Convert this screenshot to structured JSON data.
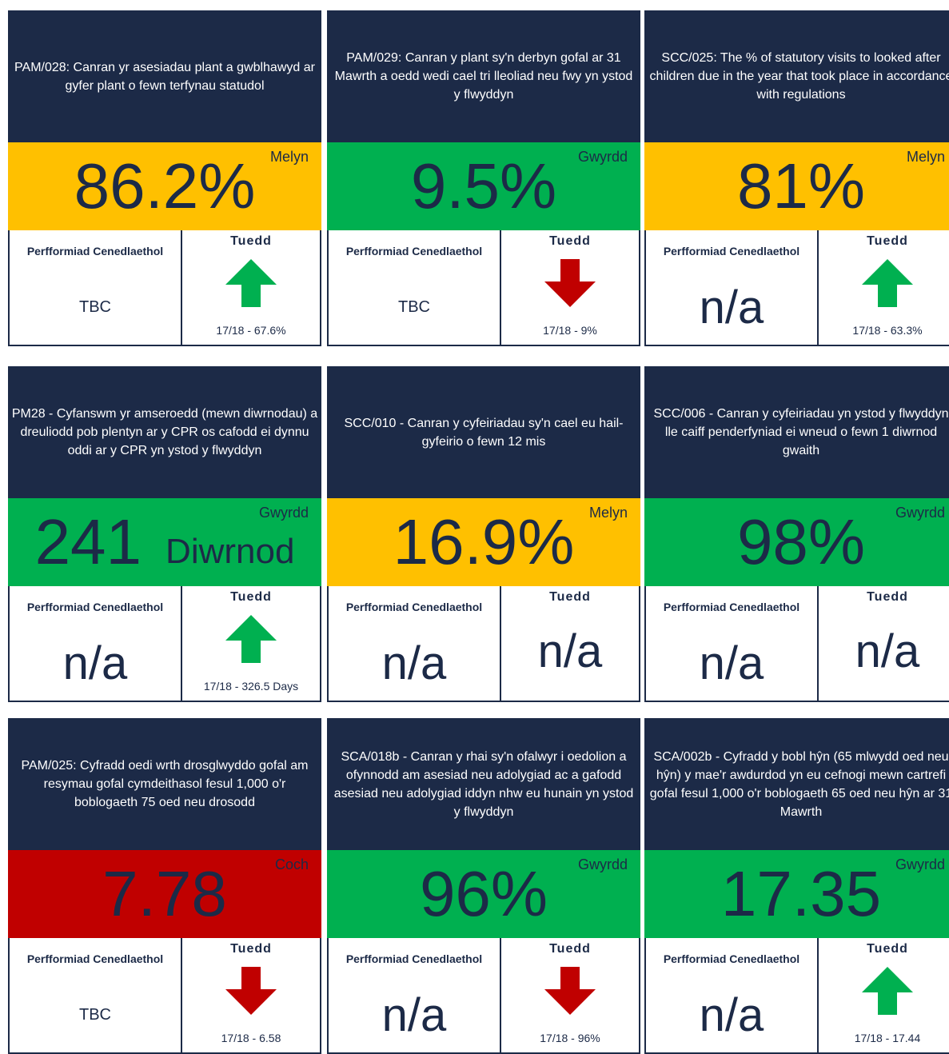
{
  "labels": {
    "national": "Perfformiad Cenedlaethol",
    "trend": "Tuedd"
  },
  "cards": [
    {
      "title": "PAM/028: Canran yr asesiadau plant a gwblhawyd ar gyfer plant o fewn terfynau statudol",
      "value": "86.2%",
      "status": "Melyn",
      "color": "#ffc000",
      "national": "TBC",
      "trend": {
        "direction": "up",
        "label": "17/18 - 67.6%"
      }
    },
    {
      "title": "PAM/029: Canran y plant sy'n derbyn gofal ar 31 Mawrth a oedd wedi cael tri lleoliad neu fwy yn ystod y flwyddyn",
      "value": "9.5%",
      "status": "Gwyrdd",
      "color": "#00b050",
      "national": "TBC",
      "trend": {
        "direction": "down",
        "label": "17/18 - 9%"
      }
    },
    {
      "title": "SCC/025: The % of statutory visits to looked after children due in the year that took place in accordance with regulations",
      "value": "81%",
      "status": "Melyn",
      "color": "#ffc000",
      "national": "n/a",
      "trend": {
        "direction": "up",
        "label": "17/18 - 63.3%"
      }
    },
    {
      "title": "PM28 - Cyfanswm yr amseroedd (mewn diwrnodau) a dreuliodd pob plentyn ar y CPR os cafodd ei dynnu oddi ar y CPR yn ystod y flwyddyn",
      "value": "241",
      "unit": "Diwrnod",
      "status": "Gwyrdd",
      "color": "#00b050",
      "national": "n/a",
      "trend": {
        "direction": "up",
        "label": "17/18 - 326.5 Days"
      }
    },
    {
      "title": "SCC/010 - Canran y cyfeiriadau sy'n cael eu hail-gyfeirio o fewn 12 mis",
      "value": "16.9%",
      "status": "Melyn",
      "color": "#ffc000",
      "national": "n/a",
      "trend": {
        "text": "n/a"
      }
    },
    {
      "title": "SCC/006 - Canran y cyfeiriadau yn ystod y flwyddyn lle caiff penderfyniad ei wneud o fewn 1 diwrnod gwaith",
      "value": "98%",
      "status": "Gwyrdd",
      "color": "#00b050",
      "national": "n/a",
      "trend": {
        "text": "n/a"
      }
    },
    {
      "title": "PAM/025: Cyfradd oedi wrth drosglwyddo gofal am resymau gofal cymdeithasol fesul 1,000 o'r boblogaeth 75 oed neu drosodd",
      "value": "7.78",
      "status": "Coch",
      "color": "#c00000",
      "national": "TBC",
      "trend": {
        "direction": "down",
        "label": "17/18 - 6.58"
      }
    },
    {
      "title": "SCA/018b - Canran y rhai sy'n ofalwyr i oedolion a ofynnodd am asesiad neu adolygiad ac a gafodd asesiad neu adolygiad iddyn nhw eu hunain yn ystod y flwyddyn",
      "value": "96%",
      "status": "Gwyrdd",
      "color": "#00b050",
      "national": "n/a",
      "trend": {
        "direction": "down",
        "label": "17/18 - 96%"
      }
    },
    {
      "title": "SCA/002b - Cyfradd y bobl hŷn (65 mlwydd oed neu hŷn) y mae'r awdurdod yn eu cefnogi mewn cartrefi gofal fesul 1,000 o'r boblogaeth 65 oed neu hŷn ar 31 Mawrth",
      "value": "17.35",
      "status": "Gwyrdd",
      "color": "#00b050",
      "national": "n/a",
      "trend": {
        "direction": "up",
        "label": "17/18 - 17.44"
      }
    }
  ]
}
